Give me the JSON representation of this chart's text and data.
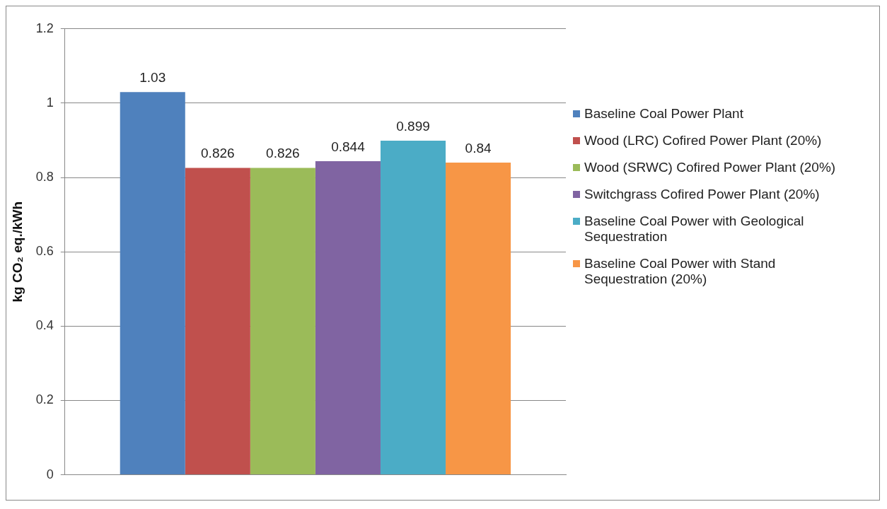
{
  "chart_data": {
    "type": "bar",
    "ylabel": "kg CO₂ eq./kWh",
    "categories": [
      null
    ],
    "series": [
      {
        "name": "Baseline Coal Power Plant",
        "color": "#4f81bd",
        "values": [
          1.03
        ]
      },
      {
        "name": "Wood (LRC) Cofired Power Plant (20%)",
        "color": "#c0504d",
        "values": [
          0.826
        ]
      },
      {
        "name": "Wood (SRWC) Cofired Power Plant (20%)",
        "color": "#9bbb59",
        "values": [
          0.826
        ]
      },
      {
        "name": "Switchgrass Cofired Power Plant (20%)",
        "color": "#8064a2",
        "values": [
          0.844
        ]
      },
      {
        "name": "Baseline Coal Power with Geological Sequestration",
        "color": "#4bacc6",
        "values": [
          0.899
        ]
      },
      {
        "name": "Baseline Coal Power with Stand Sequestration (20%)",
        "color": "#f79646",
        "values": [
          0.84
        ]
      }
    ],
    "ylim": [
      0,
      1.2
    ],
    "yticks": [
      0,
      0.2,
      0.4,
      0.6,
      0.8,
      1,
      1.2
    ],
    "grid": "y",
    "legend": "right",
    "data_labels": true
  }
}
